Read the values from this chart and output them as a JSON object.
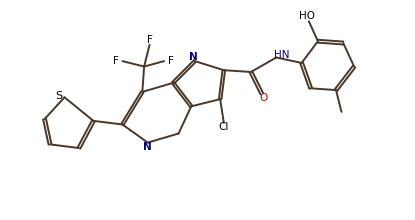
{
  "bg_color": "#ffffff",
  "line_color": "#000000",
  "bond_color": "#4a3728",
  "atom_colors": {
    "N": "#0000ff",
    "S": "#ccaa00",
    "O": "#ff0000",
    "F": "#00aa00",
    "Cl": "#008800",
    "C": "#000000",
    "H": "#000000"
  },
  "figsize": [
    4.15,
    2.2
  ],
  "dpi": 100
}
